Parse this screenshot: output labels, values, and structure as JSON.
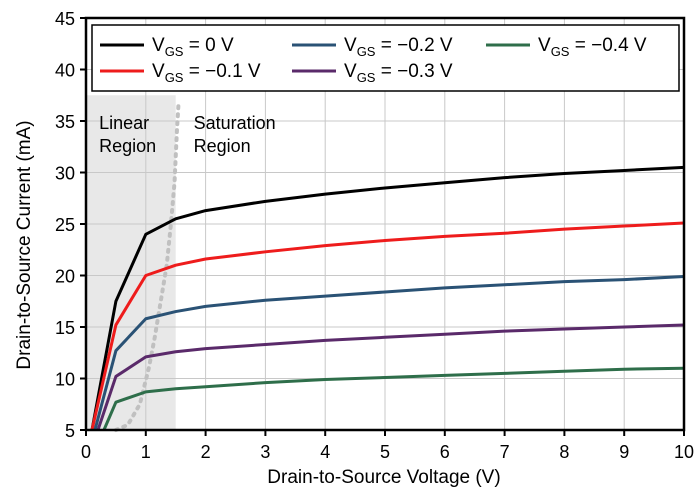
{
  "chart_data": {
    "type": "line",
    "xlabel": "Drain-to-Source Voltage (V)",
    "ylabel": "Drain-to-Source Current (mA)",
    "xlim": [
      0,
      10
    ],
    "ylim": [
      5,
      45
    ],
    "x_ticks": [
      0,
      1,
      2,
      3,
      4,
      5,
      6,
      7,
      8,
      9,
      10
    ],
    "y_ticks": [
      5,
      10,
      15,
      20,
      25,
      30,
      35,
      40,
      45
    ],
    "grid": true,
    "legend_position": "top",
    "series": [
      {
        "name": "V_GS = 0 V",
        "label_main": "V",
        "label_sub": "GS",
        "label_rest": " = 0 V",
        "color": "#000000",
        "points": [
          [
            0.1,
            4.5
          ],
          [
            0.5,
            17.5
          ],
          [
            1.0,
            24.0
          ],
          [
            1.5,
            25.5
          ],
          [
            2,
            26.3
          ],
          [
            3,
            27.2
          ],
          [
            4,
            27.9
          ],
          [
            5,
            28.5
          ],
          [
            6,
            29.0
          ],
          [
            7,
            29.5
          ],
          [
            8,
            29.9
          ],
          [
            9,
            30.2
          ],
          [
            10,
            30.5
          ]
        ]
      },
      {
        "name": "V_GS = −0.1 V",
        "label_main": "V",
        "label_sub": "GS",
        "label_rest": " = −0.1 V",
        "color": "#ee1c1c",
        "points": [
          [
            0.1,
            4.5
          ],
          [
            0.5,
            15.2
          ],
          [
            1.0,
            20.0
          ],
          [
            1.5,
            21.0
          ],
          [
            2,
            21.6
          ],
          [
            3,
            22.3
          ],
          [
            4,
            22.9
          ],
          [
            5,
            23.4
          ],
          [
            6,
            23.8
          ],
          [
            7,
            24.1
          ],
          [
            8,
            24.5
          ],
          [
            9,
            24.8
          ],
          [
            10,
            25.1
          ]
        ]
      },
      {
        "name": "V_GS = −0.2 V",
        "label_main": "V",
        "label_sub": "GS",
        "label_rest": " = −0.2 V",
        "color": "#2a5275",
        "points": [
          [
            0.15,
            4.5
          ],
          [
            0.5,
            12.7
          ],
          [
            1.0,
            15.8
          ],
          [
            1.5,
            16.5
          ],
          [
            2,
            17.0
          ],
          [
            3,
            17.6
          ],
          [
            4,
            18.0
          ],
          [
            5,
            18.4
          ],
          [
            6,
            18.8
          ],
          [
            7,
            19.1
          ],
          [
            8,
            19.4
          ],
          [
            9,
            19.6
          ],
          [
            10,
            19.9
          ]
        ]
      },
      {
        "name": "V_GS = −0.3 V",
        "label_main": "V",
        "label_sub": "GS",
        "label_rest": " = −0.3 V",
        "color": "#5a2a6a",
        "points": [
          [
            0.2,
            4.5
          ],
          [
            0.5,
            10.2
          ],
          [
            1.0,
            12.1
          ],
          [
            1.5,
            12.6
          ],
          [
            2,
            12.9
          ],
          [
            3,
            13.3
          ],
          [
            4,
            13.7
          ],
          [
            5,
            14.0
          ],
          [
            6,
            14.3
          ],
          [
            7,
            14.6
          ],
          [
            8,
            14.8
          ],
          [
            9,
            15.0
          ],
          [
            10,
            15.2
          ]
        ]
      },
      {
        "name": "V_GS = −0.4 V",
        "label_main": "V",
        "label_sub": "GS",
        "label_rest": " = −0.4 V",
        "color": "#2e6e4a",
        "points": [
          [
            0.3,
            4.5
          ],
          [
            0.5,
            7.7
          ],
          [
            1.0,
            8.7
          ],
          [
            1.5,
            9.0
          ],
          [
            2,
            9.2
          ],
          [
            3,
            9.6
          ],
          [
            4,
            9.9
          ],
          [
            5,
            10.1
          ],
          [
            6,
            10.3
          ],
          [
            7,
            10.5
          ],
          [
            8,
            10.7
          ],
          [
            9,
            10.9
          ],
          [
            10,
            11.0
          ]
        ]
      }
    ],
    "boundary_curve": {
      "color": "#c0c0c0",
      "points": [
        [
          0.5,
          4.5
        ],
        [
          0.7,
          5.5
        ],
        [
          0.9,
          7.5
        ],
        [
          1.05,
          11
        ],
        [
          1.15,
          14
        ],
        [
          1.25,
          17.5
        ],
        [
          1.35,
          21
        ],
        [
          1.42,
          25
        ],
        [
          1.48,
          29
        ],
        [
          1.52,
          34
        ],
        [
          1.55,
          37
        ]
      ]
    },
    "shaded_region": {
      "color": "#e8e8e8",
      "x_range": [
        0,
        1.5
      ],
      "y_range": [
        5,
        37.5
      ]
    },
    "annotations": [
      {
        "lines": [
          "Linear",
          "Region"
        ],
        "x": 0.22,
        "y": 34.2
      },
      {
        "lines": [
          "Saturation",
          "Region"
        ],
        "x": 1.8,
        "y": 34.2
      }
    ]
  }
}
